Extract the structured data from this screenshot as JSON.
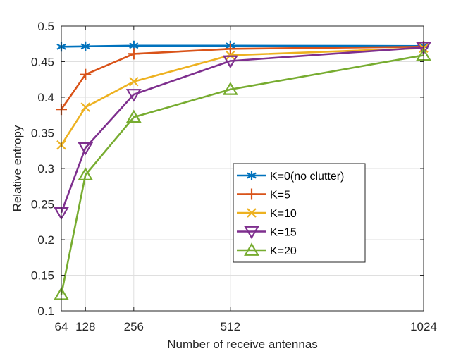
{
  "chart_data": {
    "type": "line",
    "title": "",
    "xlabel": "Number of receive antennas",
    "ylabel": "Relative entropy",
    "x": [
      64,
      128,
      256,
      512,
      1024
    ],
    "x_tick_labels": [
      "64",
      "128",
      "256",
      "512",
      "1024"
    ],
    "xlim": [
      64,
      1024
    ],
    "ylim": [
      0.1,
      0.5
    ],
    "y_ticks": [
      0.1,
      0.15,
      0.2,
      0.25,
      0.3,
      0.35,
      0.4,
      0.45,
      0.5
    ],
    "y_tick_labels": [
      "0.1",
      "0.15",
      "0.2",
      "0.25",
      "0.3",
      "0.35",
      "0.4",
      "0.45",
      "0.5"
    ],
    "grid": true,
    "legend_position": "center-right",
    "series": [
      {
        "name": "K=0(no clutter)",
        "color": "#0072BD",
        "marker": "asterisk",
        "values": [
          0.471,
          0.4715,
          0.4725,
          0.4725,
          0.472
        ]
      },
      {
        "name": "K=5",
        "color": "#D95319",
        "marker": "plus",
        "values": [
          0.383,
          0.432,
          0.461,
          0.468,
          0.471
        ]
      },
      {
        "name": "K=10",
        "color": "#EDB120",
        "marker": "cross",
        "values": [
          0.333,
          0.386,
          0.422,
          0.459,
          0.469
        ]
      },
      {
        "name": "K=15",
        "color": "#7E2F8E",
        "marker": "triangle-down",
        "values": [
          0.238,
          0.329,
          0.404,
          0.451,
          0.47
        ]
      },
      {
        "name": "K=20",
        "color": "#77AC30",
        "marker": "triangle-up",
        "values": [
          0.123,
          0.291,
          0.372,
          0.411,
          0.459
        ]
      }
    ]
  }
}
